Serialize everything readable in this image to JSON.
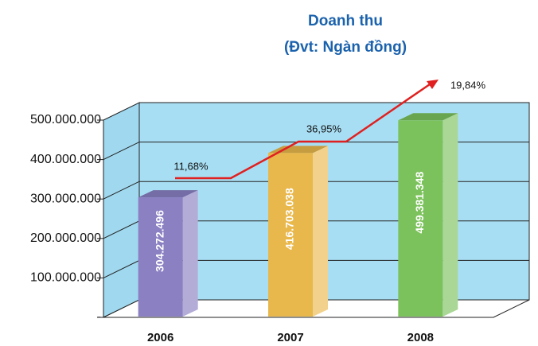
{
  "chart_data": {
    "type": "bar3d",
    "title": "Doanh thu",
    "subtitle": "(Đvt: Ngàn đồng)",
    "categories": [
      "2006",
      "2007",
      "2008"
    ],
    "values": [
      304272496,
      416703038,
      499381348
    ],
    "value_labels": [
      "304.272.496",
      "416.703.038",
      "499.381.348"
    ],
    "colors": [
      "#8a80c2",
      "#e9b84c",
      "#7cc25c"
    ],
    "ylim": [
      0,
      500000000
    ],
    "yticks": [
      {
        "value": 0,
        "label": "-"
      },
      {
        "value": 100000000,
        "label": "100.000.000"
      },
      {
        "value": 200000000,
        "label": "200.000.000"
      },
      {
        "value": 300000000,
        "label": "300.000.000"
      },
      {
        "value": 400000000,
        "label": "400.000.000"
      },
      {
        "value": 500000000,
        "label": "500.000.000"
      }
    ],
    "grid": true,
    "annotations": [
      "11,68%",
      "36,95%",
      "19,84%"
    ]
  }
}
